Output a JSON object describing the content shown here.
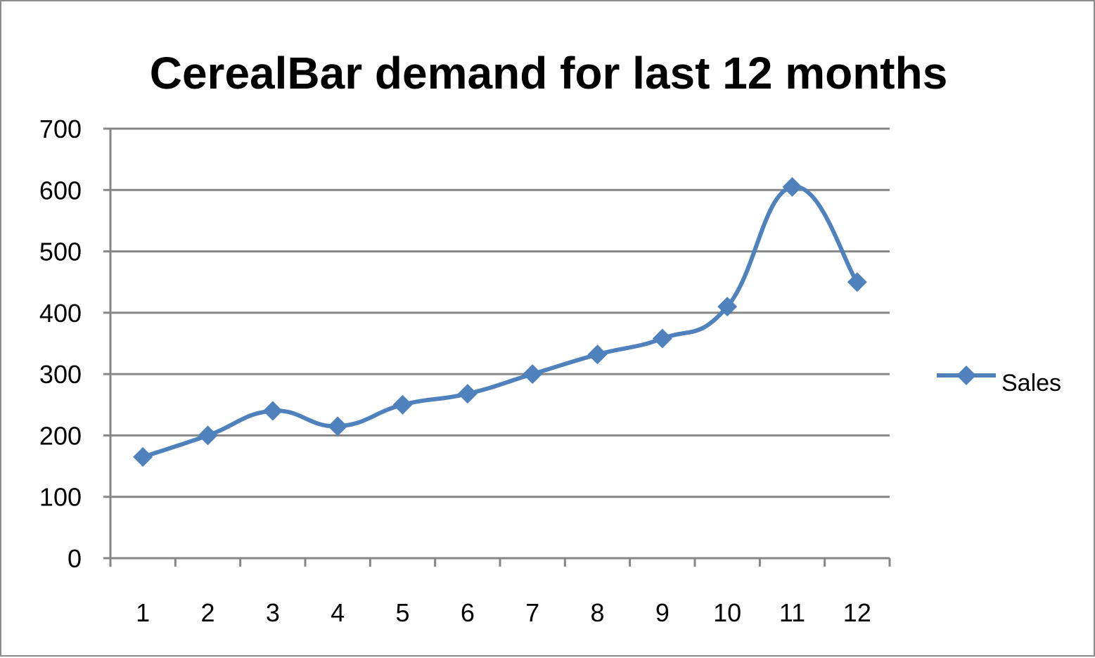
{
  "chart_data": {
    "type": "line",
    "title": "CerealBar demand for last 12 months",
    "xlabel": "",
    "ylabel": "",
    "categories": [
      "1",
      "2",
      "3",
      "4",
      "5",
      "6",
      "7",
      "8",
      "9",
      "10",
      "11",
      "12"
    ],
    "series": [
      {
        "name": "Sales",
        "values": [
          165,
          200,
          240,
          215,
          250,
          268,
          300,
          332,
          358,
          410,
          605,
          450
        ],
        "color": "#4f81bd",
        "marker": "diamond",
        "smooth": true
      }
    ],
    "ylim": [
      0,
      700
    ],
    "yticks": [
      "0",
      "100",
      "200",
      "300",
      "400",
      "500",
      "600",
      "700"
    ],
    "grid": "horizontal",
    "legend": "right"
  }
}
